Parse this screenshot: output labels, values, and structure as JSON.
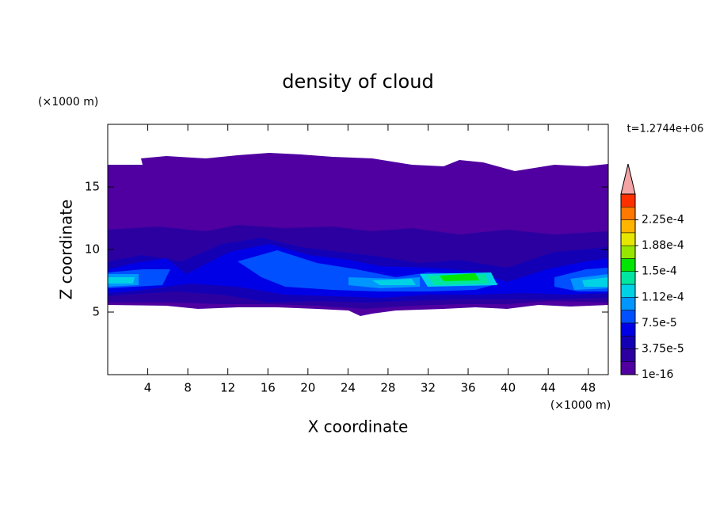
{
  "chart_data": {
    "type": "contour",
    "title": "density of cloud",
    "time_label": "t=1.2744e+06",
    "x_label": "X coordinate",
    "y_label": "Z coordinate",
    "x_unit": "(×1000 m)",
    "y_unit": "(×1000 m)",
    "xlim": [
      0,
      50
    ],
    "xticks": [
      4,
      8,
      12,
      16,
      20,
      24,
      28,
      32,
      36,
      40,
      44,
      48
    ],
    "ylim": [
      0,
      20
    ],
    "yticks": [
      5,
      10,
      15
    ],
    "colorbar": {
      "lim": [
        1e-16,
        0.0002625
      ],
      "colors": [
        "#5000a0",
        "#2c00a0",
        "#1400b4",
        "#0000e6",
        "#0050ff",
        "#0096ff",
        "#00d2e6",
        "#00e6a0",
        "#00e600",
        "#96e600",
        "#e6e600",
        "#ffb400",
        "#ff7800",
        "#ff3000"
      ],
      "extend_color": "#f4a4a4",
      "ticks": [
        {
          "value": 1e-16,
          "label": "1e-16"
        },
        {
          "value": 3.75e-05,
          "label": "3.75e-5"
        },
        {
          "value": 7.5e-05,
          "label": "7.5e-5"
        },
        {
          "value": 0.0001125,
          "label": "1.12e-4"
        },
        {
          "value": 0.00015,
          "label": "1.5e-4"
        },
        {
          "value": 0.0001875,
          "label": "1.88e-4"
        },
        {
          "value": 0.000225,
          "label": "2.25e-4"
        }
      ]
    }
  }
}
